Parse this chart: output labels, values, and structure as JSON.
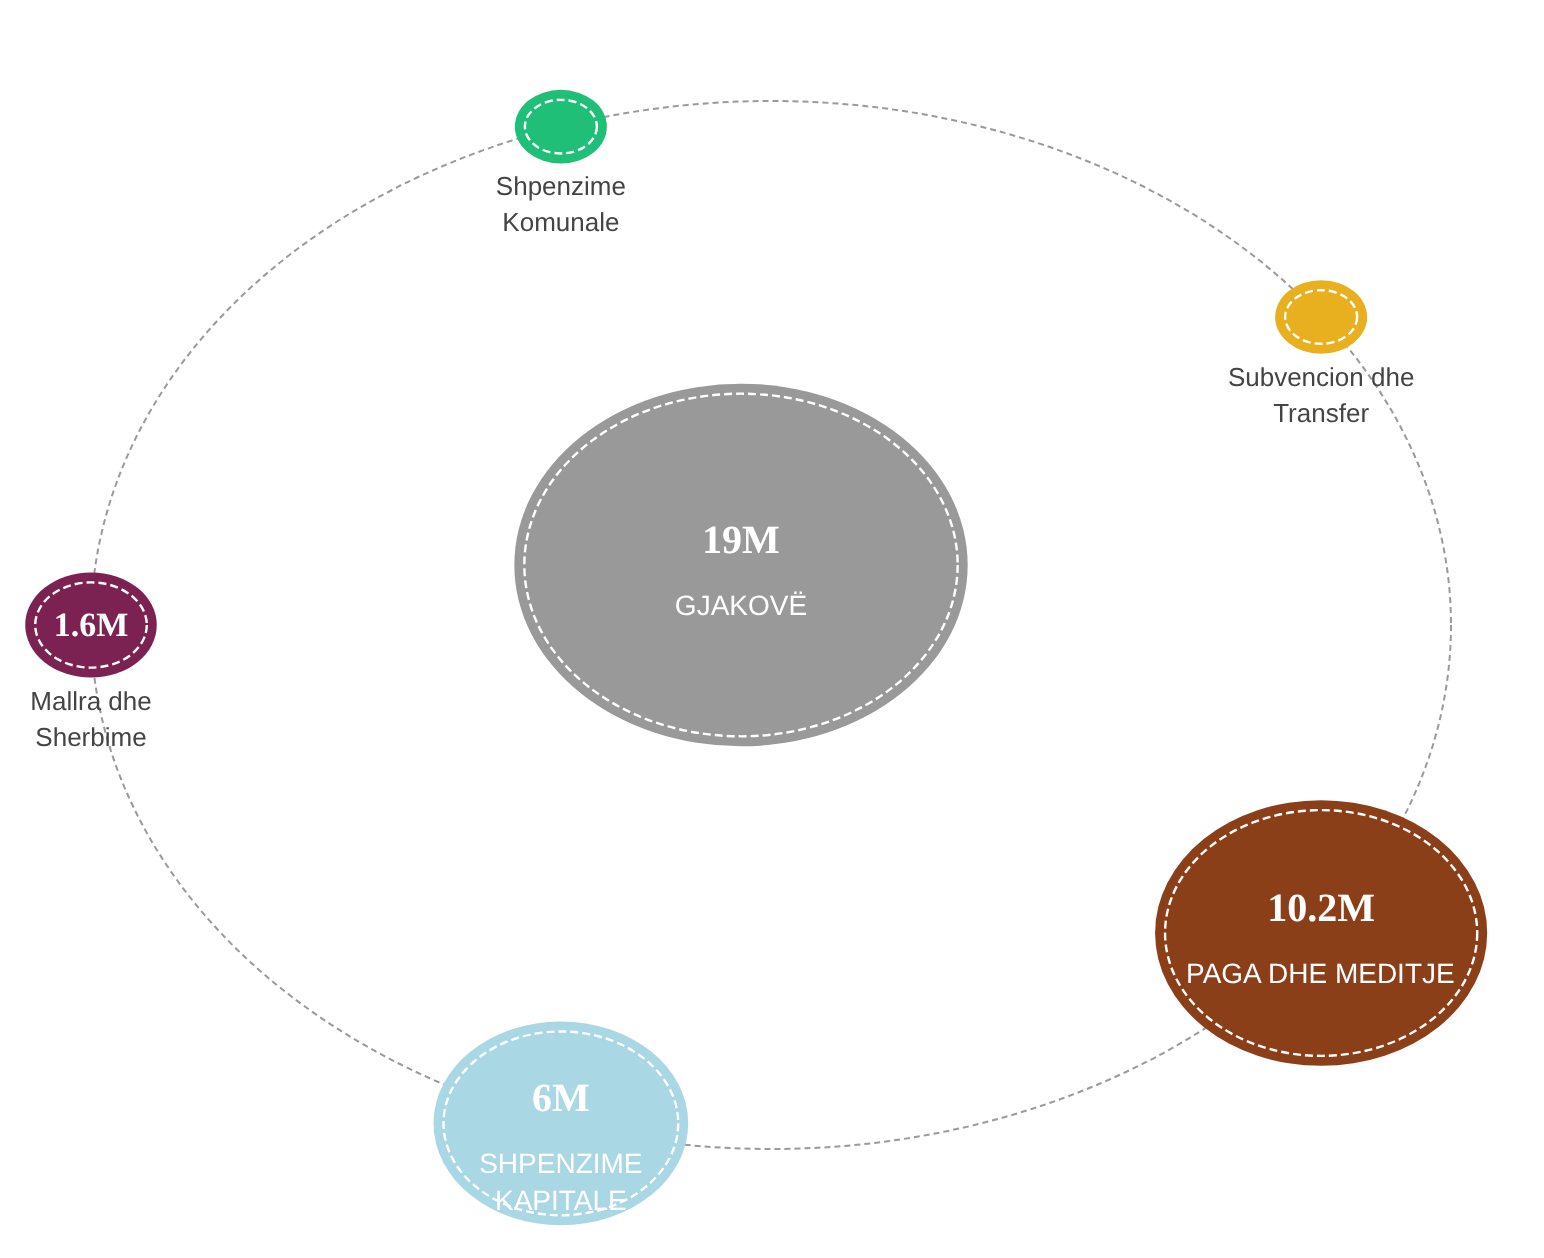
{
  "chart_data": {
    "type": "other",
    "categories": [
      "GJAKOVË",
      "Shpenzime\nKomunale",
      "Subvencion dhe\nTransfer",
      "PAGA DHE MEDITJE",
      "SHPENZIME\nKAPITALE",
      "Mallra dhe\nSherbime"
    ],
    "values": [
      19,
      null,
      null,
      10.2,
      6,
      1.6
    ],
    "value_labels": [
      "19M",
      null,
      null,
      "10.2M",
      "6M",
      "1.6M"
    ],
    "colors": [
      "#999999",
      "#1fbf78",
      "#e8b01e",
      "#8b3f19",
      "#a9d7e3",
      "#7b2253"
    ]
  }
}
